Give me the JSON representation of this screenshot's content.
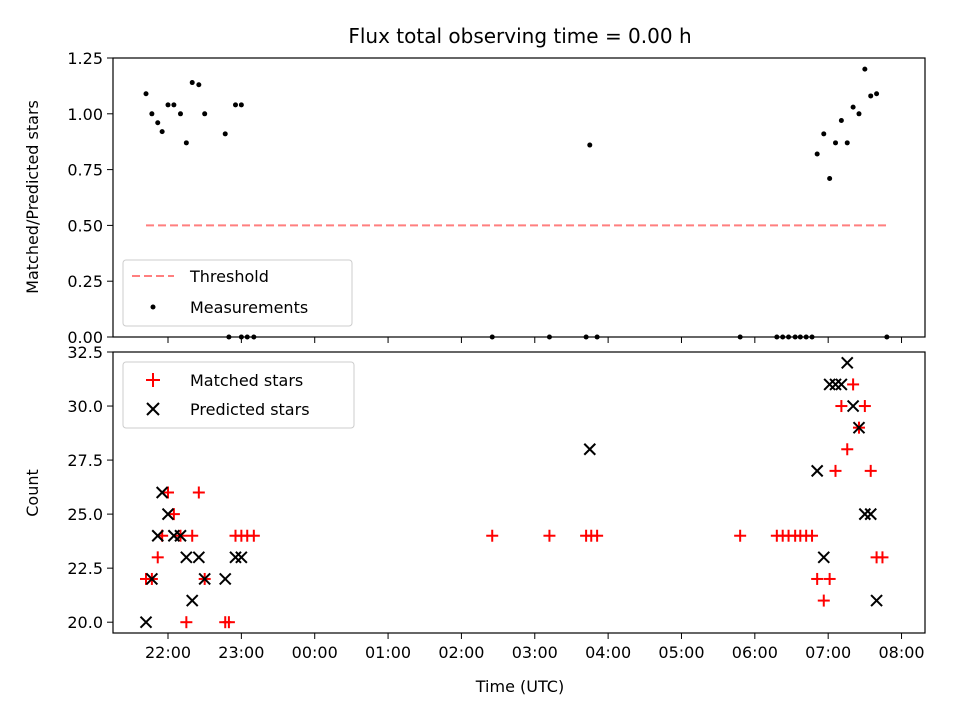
{
  "chart_data": [
    {
      "type": "scatter",
      "title": "Flux total observing time = 0.00 h",
      "ylabel": "Matched/Predicted stars",
      "xlim": [
        21.25,
        32.32
      ],
      "ylim": [
        0,
        1.25
      ],
      "y_ticks": [
        "0.00",
        "0.25",
        "0.50",
        "0.75",
        "1.00",
        "1.25"
      ],
      "legend_position": "lower-left",
      "series": [
        {
          "name": "Threshold",
          "style": "dashed-line",
          "color": "#ff7f7f",
          "x": [
            21.7,
            31.83
          ],
          "y": [
            0.5,
            0.5
          ]
        },
        {
          "name": "Measurements",
          "style": "dot",
          "color": "#000000",
          "x": [
            21.7,
            21.78,
            21.86,
            21.92,
            22.0,
            22.08,
            22.17,
            22.25,
            22.33,
            22.42,
            22.5,
            22.78,
            22.92,
            23.0,
            22.83,
            23.0,
            23.08,
            23.17,
            26.42,
            27.2,
            27.7,
            27.85,
            29.8,
            30.3,
            30.38,
            30.46,
            30.55,
            30.62,
            30.7,
            30.78,
            31.8,
            27.75,
            30.85,
            30.94,
            31.02,
            31.1,
            31.18,
            31.26,
            31.34,
            31.42,
            31.5,
            31.58,
            31.66
          ],
          "y": [
            1.09,
            1.0,
            0.96,
            0.92,
            1.04,
            1.04,
            1.0,
            0.87,
            1.14,
            1.13,
            1.0,
            0.91,
            1.04,
            1.04,
            0.0,
            0.0,
            0.0,
            0.0,
            0.0,
            0.0,
            0.0,
            0.0,
            0.0,
            0.0,
            0.0,
            0.0,
            0.0,
            0.0,
            0.0,
            0.0,
            0.0,
            0.86,
            0.82,
            0.91,
            0.71,
            0.87,
            0.97,
            0.87,
            1.03,
            1.0,
            1.2,
            1.08,
            1.09
          ]
        }
      ]
    },
    {
      "type": "scatter",
      "xlabel": "Time (UTC)",
      "ylabel": "Count",
      "xlim": [
        21.25,
        32.32
      ],
      "ylim": [
        19.5,
        32.5
      ],
      "x_ticks": [
        {
          "value": 22,
          "label": "22:00"
        },
        {
          "value": 23,
          "label": "23:00"
        },
        {
          "value": 24,
          "label": "00:00"
        },
        {
          "value": 25,
          "label": "01:00"
        },
        {
          "value": 26,
          "label": "02:00"
        },
        {
          "value": 27,
          "label": "03:00"
        },
        {
          "value": 28,
          "label": "04:00"
        },
        {
          "value": 29,
          "label": "05:00"
        },
        {
          "value": 30,
          "label": "06:00"
        },
        {
          "value": 31,
          "label": "07:00"
        },
        {
          "value": 32,
          "label": "08:00"
        }
      ],
      "y_ticks": [
        "20.0",
        "22.5",
        "25.0",
        "27.5",
        "30.0",
        "32.5"
      ],
      "legend_position": "upper-left",
      "series": [
        {
          "name": "Matched stars",
          "marker": "plus",
          "color": "#ff0000",
          "x": [
            21.7,
            21.78,
            21.86,
            21.92,
            22.0,
            22.08,
            22.17,
            22.25,
            22.33,
            22.42,
            22.5,
            22.78,
            22.83,
            22.92,
            23.0,
            23.08,
            23.17,
            26.42,
            27.2,
            27.7,
            27.77,
            27.85,
            29.8,
            30.3,
            30.38,
            30.46,
            30.55,
            30.62,
            30.7,
            30.78,
            30.85,
            30.94,
            31.02,
            31.1,
            31.18,
            31.26,
            31.34,
            31.42,
            31.5,
            31.58,
            31.66,
            31.74
          ],
          "y": [
            22,
            22,
            23,
            24,
            26,
            25,
            24,
            20,
            24,
            26,
            22,
            20,
            20,
            24,
            24,
            24,
            24,
            24,
            24,
            24,
            24,
            24,
            24,
            24,
            24,
            24,
            24,
            24,
            24,
            24,
            22,
            21,
            22,
            27,
            30,
            28,
            31,
            29,
            30,
            27,
            23,
            23
          ]
        },
        {
          "name": "Predicted stars",
          "marker": "x",
          "color": "#000000",
          "x": [
            21.7,
            21.78,
            21.86,
            21.92,
            22.0,
            22.08,
            22.17,
            22.25,
            22.33,
            22.42,
            22.5,
            22.78,
            22.92,
            23.0,
            27.75,
            30.85,
            30.94,
            31.02,
            31.1,
            31.18,
            31.26,
            31.34,
            31.42,
            31.5,
            31.58,
            31.66
          ],
          "y": [
            20,
            22,
            24,
            26,
            25,
            24,
            24,
            23,
            21,
            23,
            22,
            22,
            23,
            23,
            28,
            27,
            23,
            31,
            31,
            31,
            32,
            30,
            29,
            25,
            25,
            21
          ]
        }
      ]
    }
  ]
}
